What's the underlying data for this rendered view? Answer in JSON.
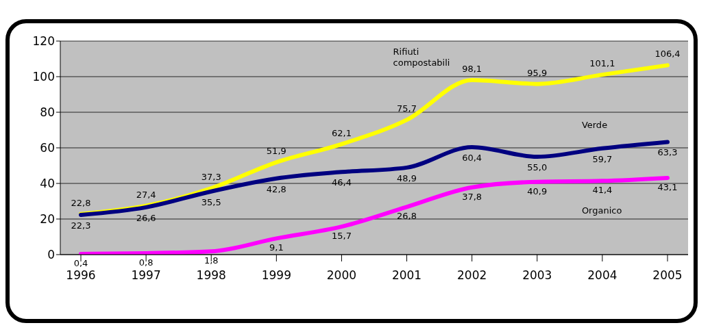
{
  "chart_data": {
    "type": "line",
    "categories": [
      "1996",
      "1997",
      "1998",
      "1999",
      "2000",
      "2001",
      "2002",
      "2003",
      "2004",
      "2005"
    ],
    "series": [
      {
        "name": "Rifiuti compostabili",
        "color": "#ffff00",
        "values": [
          22.8,
          27.4,
          37.3,
          51.9,
          62.1,
          75.7,
          98.1,
          95.9,
          101.1,
          106.4
        ],
        "value_labels": [
          "22,8",
          "27,4",
          "37,3",
          "51,9",
          "62,1",
          "75,7",
          "98,1",
          "95,9",
          "101,1",
          "106,4"
        ]
      },
      {
        "name": "Verde",
        "color": "#000080",
        "values": [
          22.3,
          26.6,
          35.5,
          42.8,
          46.4,
          48.9,
          60.4,
          55.0,
          59.7,
          63.3
        ],
        "value_labels": [
          "22,3",
          "26,6",
          "35,5",
          "42,8",
          "46,4",
          "48,9",
          "60,4",
          "55,0",
          "59,7",
          "63,3"
        ]
      },
      {
        "name": "Organico",
        "color": "#ff00ff",
        "values": [
          0.4,
          0.8,
          1.8,
          9.1,
          15.7,
          26.8,
          37.8,
          40.9,
          41.4,
          43.1
        ],
        "value_labels": [
          "0,4",
          "0,8",
          "1,8",
          "9,1",
          "15,7",
          "26,8",
          "37,8",
          "40,9",
          "41,4",
          "43,1"
        ]
      }
    ],
    "ylim": [
      0,
      120
    ],
    "yticks": [
      0,
      20,
      40,
      60,
      80,
      100,
      120
    ],
    "grid": "y",
    "legend": false,
    "marker": "none",
    "line_style": "solid"
  }
}
